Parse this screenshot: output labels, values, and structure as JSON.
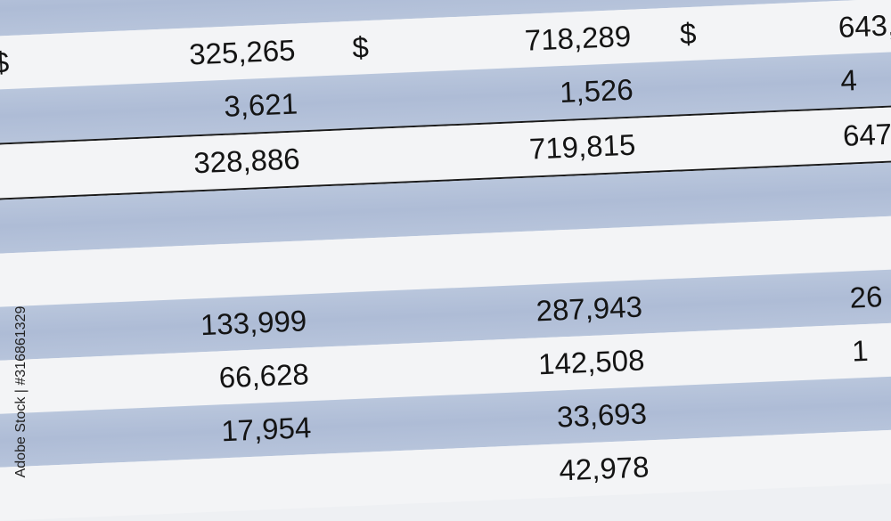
{
  "table": {
    "rows": [
      {
        "c1": "",
        "c2": "",
        "c3": "",
        "d0": "",
        "d1": "",
        "d2": ""
      },
      {
        "c1": "325,265",
        "c2": "718,289",
        "c3": "643,",
        "d0": "$",
        "d1": "$",
        "d2": "$"
      },
      {
        "c1": "3,621",
        "c2": "1,526",
        "c3": "4",
        "d0": "",
        "d1": "",
        "d2": ""
      },
      {
        "c1": "328,886",
        "c2": "719,815",
        "c3": "647",
        "d0": "",
        "d1": "",
        "d2": ""
      },
      {
        "c1": "",
        "c2": "",
        "c3": "",
        "d0": "",
        "d1": "",
        "d2": ""
      },
      {
        "c1": "",
        "c2": "",
        "c3": "",
        "d0": "",
        "d1": "",
        "d2": ""
      },
      {
        "c1": "133,999",
        "c2": "287,943",
        "c3": "26",
        "d0": "",
        "d1": "",
        "d2": ""
      },
      {
        "c1": "66,628",
        "c2": "142,508",
        "c3": "1",
        "d0": "",
        "d1": "",
        "d2": ""
      },
      {
        "c1": "17,954",
        "c2": "33,693",
        "c3": "",
        "d0": "",
        "d1": "",
        "d2": ""
      },
      {
        "c1": "",
        "c2": "42,978",
        "c3": "",
        "d0": "",
        "d1": "",
        "d2": ""
      }
    ]
  },
  "watermark": "Adobe Stock | #316861329",
  "colors": {
    "band_blue": "#b3c1d9",
    "band_white": "#f3f4f6",
    "text": "#141414"
  }
}
